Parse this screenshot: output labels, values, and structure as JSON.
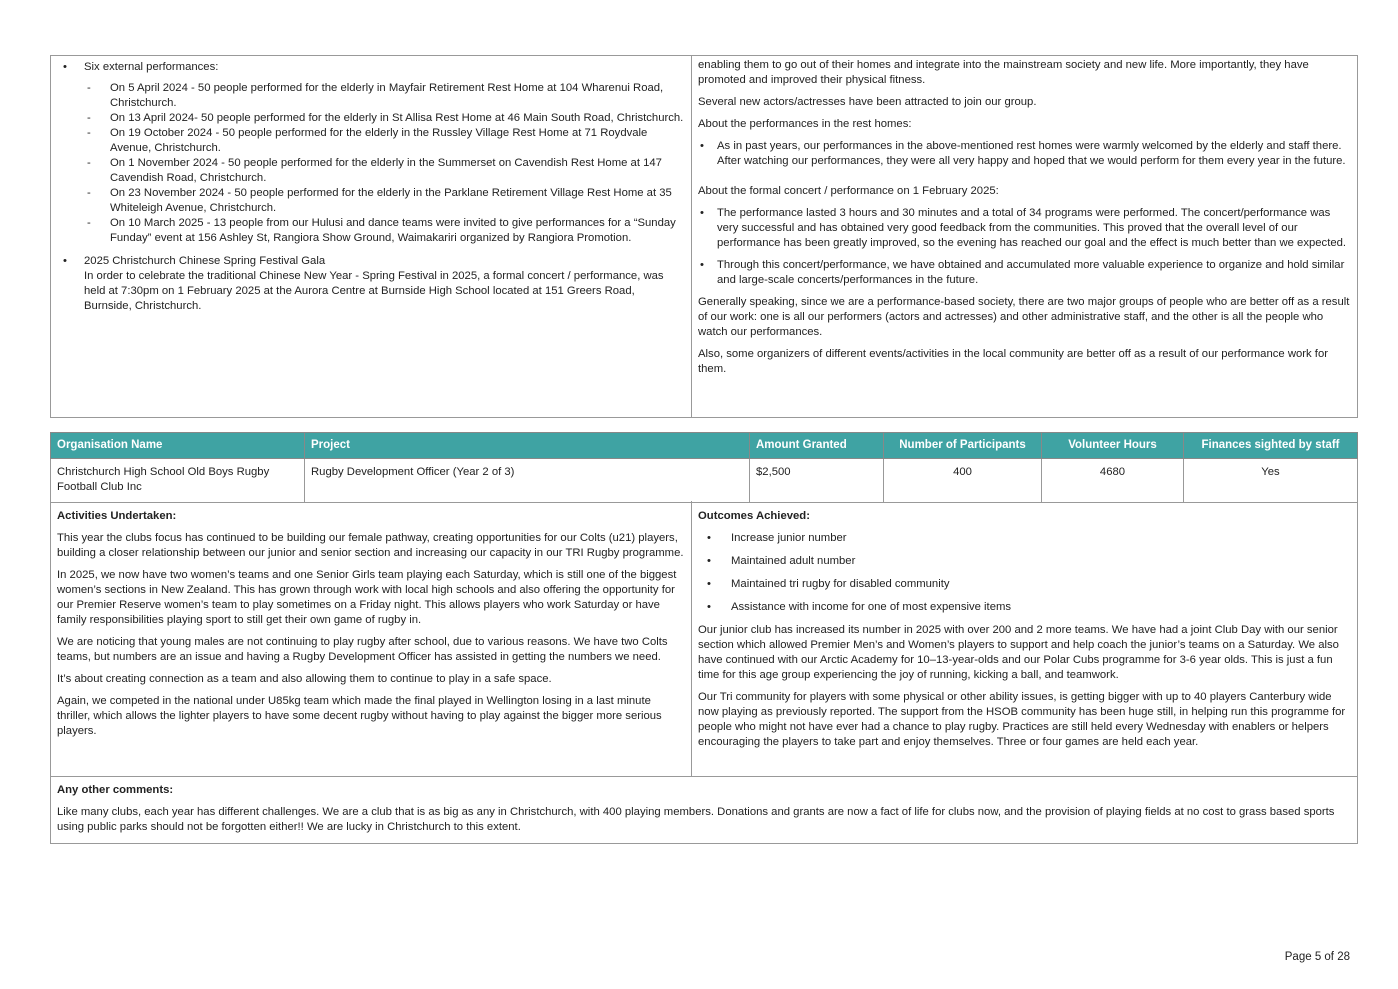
{
  "top": {
    "left": {
      "bullet1": "Six external performances:",
      "performances": [
        "On 5 April 2024 - 50 people performed for the elderly in Mayfair Retirement Rest Home at 104 Wharenui Road, Christchurch.",
        "On 13 April 2024- 50 people performed for the elderly in St Allisa Rest Home at 46 Main South Road, Christchurch.",
        "On 19 October 2024 - 50 people performed for the elderly in the Russley Village Rest Home at 71 Roydvale Avenue, Christchurch.",
        "On 1 November 2024 - 50 people performed for the elderly in the Summerset on Cavendish Rest Home at 147 Cavendish Road, Christchurch.",
        "On 23 November 2024 - 50 people performed for the elderly in the Parklane Retirement Village Rest Home at 35 Whiteleigh Avenue, Christchurch.",
        "On 10 March 2025 - 13 people from our Hulusi and dance teams were invited to give performances for a “Sunday Funday” event at 156 Ashley St, Rangiora Show Ground, Waimakariri organized by Rangiora Promotion."
      ],
      "bullet2_title": "2025 Christchurch Chinese Spring Festival Gala",
      "bullet2_text": "In order to celebrate the traditional Chinese New Year - Spring Festival in 2025, a formal concert / performance, was held at 7:30pm on 1 February 2025 at the Aurora Centre at Burnside High School located at 151 Greers Road, Burnside, Christchurch."
    },
    "right": {
      "p1": "enabling them to go out of their homes and integrate into the mainstream society and new life. More importantly, they have promoted and improved their physical fitness.",
      "p2": "Several new actors/actresses have been attracted to join our group.",
      "p3": "About the performances in the rest homes:",
      "b1": "As in past years, our performances in the above-mentioned rest homes were warmly welcomed by the elderly and staff there. After watching our performances, they were all very happy and hoped that we would perform for them every year in the future.",
      "p4": "About the formal concert / performance on 1 February 2025:",
      "b2": "The performance lasted 3 hours and 30 minutes and a total of 34 programs were performed. The concert/performance was very successful and has obtained very good feedback from the communities. This proved that the overall level of our performance has been greatly improved, so the evening has reached our goal and the effect is much better than we expected.",
      "b3": "Through this concert/performance, we have obtained and accumulated more valuable experience to organize and hold similar and large-scale concerts/performances in the future.",
      "p5": "Generally speaking, since we are a performance-based society, there are two major groups of people who are better off as a result of our work: one is all our performers (actors and actresses) and other administrative staff, and the other is all the people who watch our performances.",
      "p6": "Also, some organizers of different events/activities in the local community are better off as a result of our performance work for them."
    }
  },
  "table": {
    "headers": [
      "Organisation Name",
      "Project",
      "Amount Granted",
      "Number of Participants",
      "Volunteer Hours",
      "Finances sighted by staff"
    ],
    "row": [
      "Christchurch High School Old Boys Rugby Football Club Inc",
      "Rugby Development Officer (Year 2 of 3)",
      "$2,500",
      "400",
      "4680",
      "Yes"
    ],
    "header_color": "#3fa3a3"
  },
  "activities": {
    "heading": "Activities Undertaken:",
    "paras": [
      "This year the clubs focus has continued to be building our female pathway, creating opportunities for our Colts (u21) players, building a closer relationship between our junior and senior section and increasing our capacity in our TRI Rugby programme.",
      "In 2025, we now have two women’s teams and one Senior Girls team playing each Saturday, which is still one of the biggest women’s sections in New Zealand. This has grown through work with local high schools and also offering the opportunity for our Premier Reserve women’s team to play sometimes on a Friday night. This allows players who work Saturday or have family responsibilities playing sport to still get their own game of rugby in.",
      "We are noticing that young males are not continuing to play rugby after school, due to various reasons. We have two Colts teams, but numbers are an issue and having a Rugby Development Officer has assisted in getting the numbers we need.",
      "It’s about creating connection as a team and also allowing them to continue to play in a safe space.",
      "Again, we competed in the national under U85kg team which made the final played in Wellington losing in a last minute thriller, which allows the lighter players to have some decent rugby without having to play against the bigger more serious players."
    ]
  },
  "outcomes": {
    "heading": "Outcomes Achieved:",
    "bullets": [
      "Increase junior number",
      "Maintained adult number",
      "Maintained tri rugby for disabled community",
      "Assistance with income for one of most expensive items"
    ],
    "paras": [
      "Our junior club has increased its number in 2025 with over 200 and 2 more teams. We have had a joint Club Day with our senior section which allowed Premier Men’s and Women’s players to support and help coach the junior’s teams on a Saturday. We also have continued with our Arctic Academy for 10–13-year-olds and our Polar Cubs programme for 3-6 year olds. This is just a fun time for this age group experiencing the joy of running, kicking a ball, and teamwork.",
      "Our Tri community for players with some physical or other ability issues, is getting bigger with up to 40 players Canterbury wide now playing as previously reported. The support from the HSOB community has been huge still, in helping run this programme for people who might not have ever had a chance to play rugby. Practices are still held every Wednesday with enablers or helpers encouraging the players to take part and enjoy themselves. Three or four games are held each year."
    ]
  },
  "comments": {
    "heading": "Any other comments:",
    "text": "Like many clubs, each year has different challenges. We are a club that is as big as any in Christchurch, with 400 playing members. Donations and grants are now a fact of life for clubs now, and the provision of playing fields at no cost to grass based sports using public parks should not be forgotten either!! We are lucky in Christchurch to this extent."
  },
  "footer": {
    "page": "Page 5 of 28"
  }
}
